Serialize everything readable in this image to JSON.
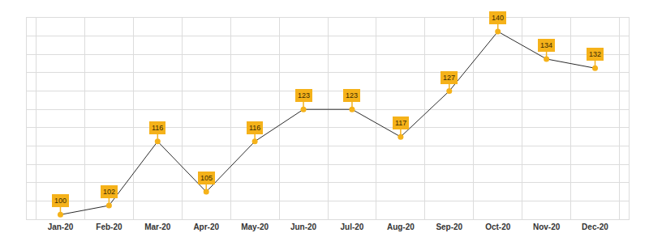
{
  "chart_data": {
    "type": "line",
    "categories": [
      "Jan-20",
      "Feb-20",
      "Mar-20",
      "Apr-20",
      "May-20",
      "Jun-20",
      "Jul-20",
      "Aug-20",
      "Sep-20",
      "Oct-20",
      "Nov-20",
      "Dec-20"
    ],
    "values": [
      100,
      102,
      116,
      105,
      116,
      123,
      123,
      117,
      127,
      140,
      134,
      132
    ],
    "color": "#f5b21a",
    "marker": "circle",
    "data_labels": true,
    "tick_labels": "x",
    "grid": true,
    "ylim": [
      99,
      143
    ],
    "yticks": [
      103,
      107,
      111,
      115,
      119,
      123,
      127,
      131,
      135,
      139,
      143
    ]
  }
}
